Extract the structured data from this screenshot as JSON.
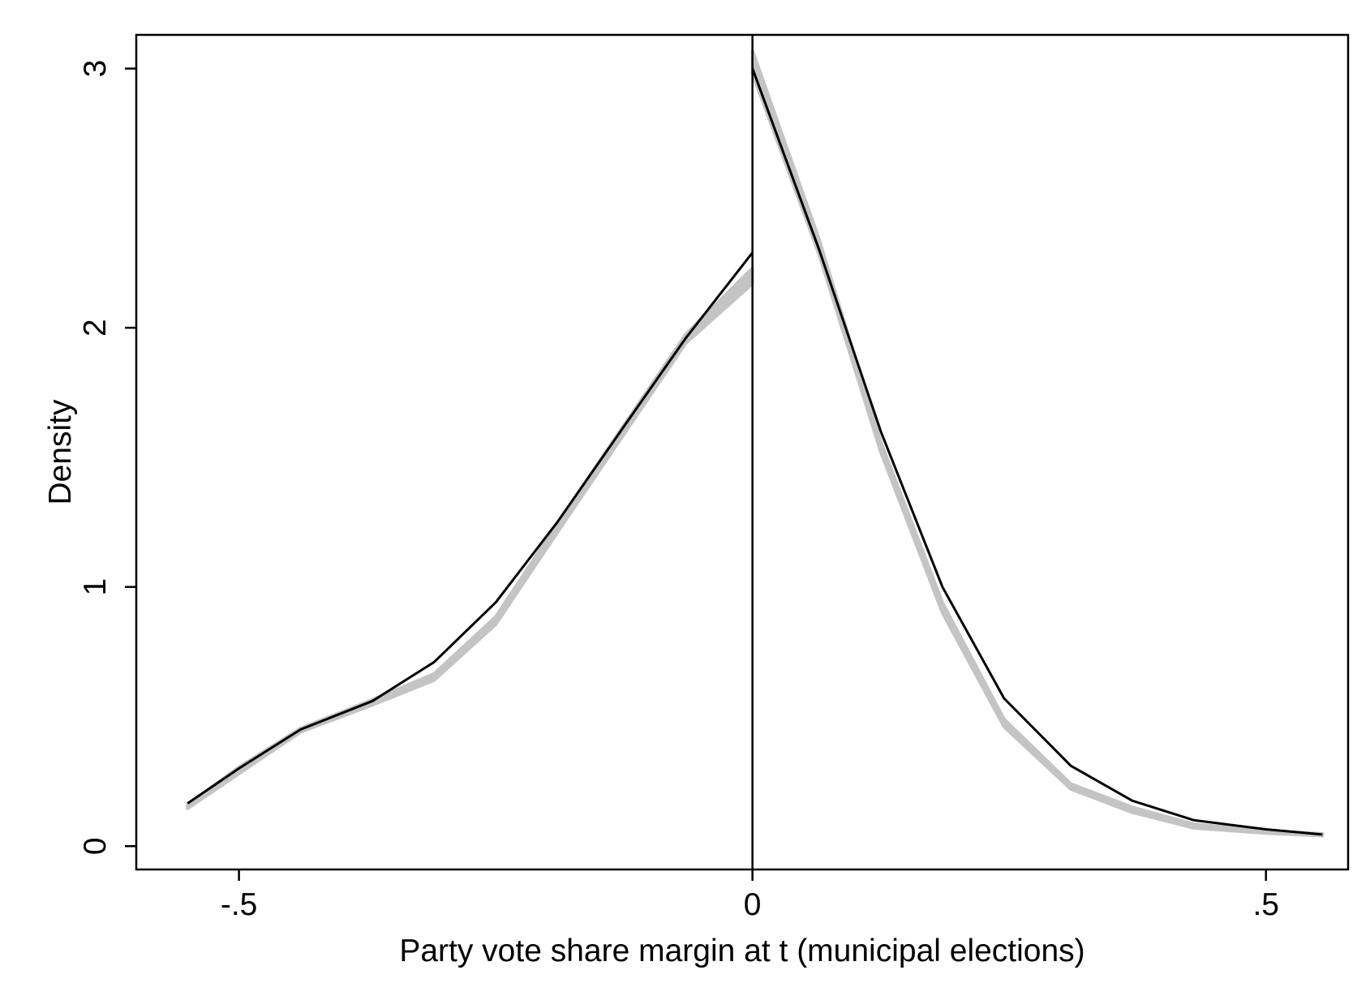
{
  "chart_data": {
    "type": "line",
    "title": "",
    "xlabel": "Party vote share margin at t (municipal elections)",
    "ylabel": "Density",
    "xlim": [
      -0.6,
      0.58
    ],
    "ylim": [
      -0.09,
      3.13
    ],
    "x_ticks": [
      {
        "value": -0.5,
        "label": "-.5"
      },
      {
        "value": 0,
        "label": "0"
      },
      {
        "value": 0.5,
        "label": ".5"
      }
    ],
    "y_ticks": [
      {
        "value": 0,
        "label": "0"
      },
      {
        "value": 1,
        "label": "1"
      },
      {
        "value": 2,
        "label": "2"
      },
      {
        "value": 3,
        "label": "3"
      }
    ],
    "cutoff": 0,
    "grid": false,
    "legend": "none",
    "colors": {
      "observed_line": "#000000",
      "band": "#c4c4c4",
      "axis": "#000000",
      "background": "#ffffff"
    },
    "series": [
      {
        "role": "observed",
        "segments": [
          {
            "x": [
              -0.55,
              -0.5,
              -0.44,
              -0.37,
              -0.31,
              -0.25,
              -0.19,
              -0.125,
              -0.065,
              0
            ],
            "y": [
              0.165,
              0.3,
              0.45,
              0.56,
              0.71,
              0.94,
              1.25,
              1.62,
              1.96,
              2.29
            ]
          },
          {
            "x": [
              0,
              0.065,
              0.125,
              0.185,
              0.245,
              0.31,
              0.37,
              0.43,
              0.5,
              0.555
            ],
            "y": [
              3.0,
              2.3,
              1.6,
              1.0,
              0.57,
              0.31,
              0.175,
              0.1,
              0.065,
              0.045
            ]
          }
        ]
      },
      {
        "role": "band",
        "segments": [
          {
            "x": [
              -0.55,
              -0.5,
              -0.44,
              -0.37,
              -0.31,
              -0.25,
              -0.19,
              -0.125,
              -0.065,
              0
            ],
            "lower": [
              0.145,
              0.28,
              0.44,
              0.545,
              0.64,
              0.855,
              1.21,
              1.59,
              1.94,
              2.17
            ],
            "upper": [
              0.16,
              0.305,
              0.455,
              0.565,
              0.665,
              0.885,
              1.245,
              1.625,
              1.975,
              2.23
            ]
          },
          {
            "x": [
              0,
              0.065,
              0.125,
              0.185,
              0.245,
              0.31,
              0.37,
              0.43,
              0.5,
              0.555
            ],
            "lower": [
              2.98,
              2.28,
              1.52,
              0.9,
              0.46,
              0.22,
              0.13,
              0.07,
              0.05,
              0.04
            ],
            "upper": [
              3.07,
              2.34,
              1.56,
              0.94,
              0.49,
              0.24,
              0.15,
              0.085,
              0.06,
              0.048
            ]
          }
        ]
      }
    ]
  }
}
